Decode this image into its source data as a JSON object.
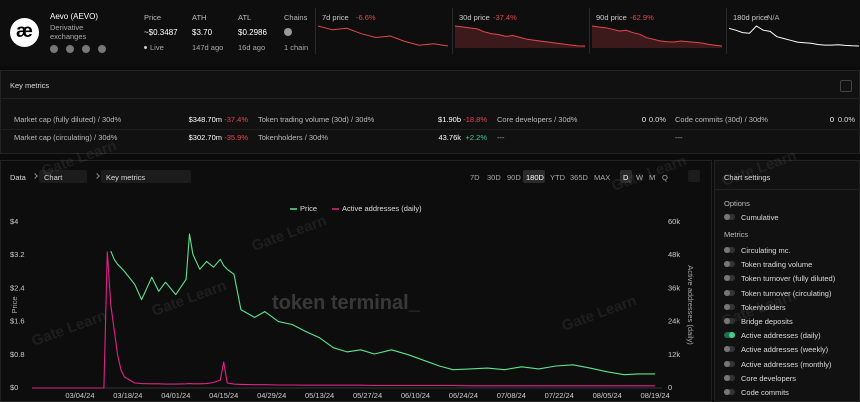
{
  "header": {
    "logo": "æ",
    "name": "Aevo (AEVO)",
    "category": "Derivative exchanges",
    "stats": [
      {
        "label": "Price",
        "value": "~$0.3487",
        "note": "Live"
      },
      {
        "label": "ATH",
        "value": "$3.70",
        "note": "147d ago"
      },
      {
        "label": "ATL",
        "value": "$0.2986",
        "note": "16d ago"
      },
      {
        "label": "Chains",
        "note": "1 chain"
      }
    ]
  },
  "sparklines": [
    {
      "label": "7d price",
      "change": "-6.6%",
      "color": "#e5484d",
      "area": false,
      "values": [
        0.375,
        0.37,
        0.372,
        0.365,
        0.36,
        0.362,
        0.355,
        0.35,
        0.352,
        0.349
      ]
    },
    {
      "label": "30d price",
      "change": "-37.4%",
      "color": "#e5484d",
      "area": true,
      "values": [
        0.56,
        0.55,
        0.54,
        0.53,
        0.5,
        0.48,
        0.47,
        0.45,
        0.46,
        0.44,
        0.42,
        0.41,
        0.4,
        0.39,
        0.38,
        0.37,
        0.36,
        0.35,
        0.349
      ]
    },
    {
      "label": "90d price",
      "change": "-62.9%",
      "color": "#e5484d",
      "area": true,
      "values": [
        0.95,
        0.92,
        0.9,
        0.85,
        0.8,
        0.82,
        0.75,
        0.7,
        0.6,
        0.55,
        0.5,
        0.48,
        0.47,
        0.5,
        0.48,
        0.46,
        0.44,
        0.4,
        0.37,
        0.35
      ]
    },
    {
      "label": "180d price",
      "change": "N/A",
      "color": "#ffffff",
      "area": false,
      "values": [
        3.3,
        3.0,
        2.6,
        2.5,
        3.7,
        3.0,
        2.8,
        1.9,
        1.6,
        1.3,
        1.0,
        0.9,
        0.8,
        0.6,
        0.5,
        0.5,
        0.55,
        0.45,
        0.38,
        0.35
      ]
    }
  ],
  "key_metrics": {
    "title": "Key metrics",
    "rows": [
      [
        {
          "label": "Market cap (fully diluted) / 30d%",
          "value": "$348.70m",
          "change": "-37.4%"
        },
        {
          "label": "Token trading volume (30d) / 30d%",
          "value": "$1.90b",
          "change": "-18.8%"
        },
        {
          "label": "Core developers / 30d%",
          "value": "0",
          "change": "0.0%"
        },
        {
          "label": "Code commits (30d) / 30d%",
          "value": "0",
          "change": "0.0%"
        }
      ],
      [
        {
          "label": "Market cap (circulating) / 30d%",
          "value": "$302.70m",
          "change": "-35.9%"
        },
        {
          "label": "Tokenholders / 30d%",
          "value": "43.76k",
          "change": "+2.2%"
        },
        {
          "label": "---"
        },
        {
          "label": "---"
        }
      ]
    ]
  },
  "chart_panel": {
    "breadcrumb": [
      "Data",
      "Chart",
      "Key metrics"
    ],
    "ranges": [
      "7D",
      "30D",
      "90D",
      "180D",
      "YTD",
      "365D",
      "MAX"
    ],
    "active_range": 3,
    "intervals": [
      "D",
      "W",
      "M",
      "Q"
    ],
    "active_interval": 0
  },
  "watermarks": [
    "token terminal_",
    "Gate Learn"
  ],
  "chart_data": {
    "type": "line",
    "ylabel": "Price",
    "y2label": "Active addresses (daily)",
    "grid": false,
    "x": [
      "02/19/24",
      "03/04/24",
      "03/11/24",
      "03/12/24",
      "03/13/24",
      "03/14/24",
      "03/15/24",
      "03/16/24",
      "03/17/24",
      "03/20/24",
      "03/22/24",
      "03/25/24",
      "03/27/24",
      "03/29/24",
      "04/01/24",
      "04/04/24",
      "04/05/24",
      "04/06/24",
      "04/08/24",
      "04/10/24",
      "04/12/24",
      "04/14/24",
      "04/15/24",
      "04/16/24",
      "04/18/24",
      "04/20/24",
      "04/24/24",
      "04/27/24",
      "05/01/24",
      "05/05/24",
      "05/09/24",
      "05/13/24",
      "05/17/24",
      "05/21/24",
      "05/25/24",
      "05/29/24",
      "06/03/24",
      "06/08/24",
      "06/12/24",
      "06/17/24",
      "06/21/24",
      "06/26/24",
      "07/01/24",
      "07/06/24",
      "07/11/24",
      "07/16/24",
      "07/21/24",
      "07/26/24",
      "07/31/24",
      "08/05/24",
      "08/10/24",
      "08/14/24",
      "08/19/24"
    ],
    "xlim": [
      "02/19/24",
      "08/21/24"
    ],
    "xticks": [
      "03/04/24",
      "03/18/24",
      "04/01/24",
      "04/15/24",
      "04/29/24",
      "05/13/24",
      "05/27/24",
      "06/10/24",
      "06/24/24",
      "07/08/24",
      "07/22/24",
      "08/05/24",
      "08/19/24"
    ],
    "ylim": [
      0,
      4
    ],
    "yticks": [
      {
        "value": 4,
        "label": "$4"
      },
      {
        "value": 3.2,
        "label": "$3.2"
      },
      {
        "value": 2.4,
        "label": "$2.4"
      },
      {
        "value": 1.6,
        "label": "$1.6"
      },
      {
        "value": 0.8,
        "label": "$0.8"
      },
      {
        "value": 0,
        "label": "$0"
      }
    ],
    "y2lim": [
      0,
      60000
    ],
    "y2ticks": [
      {
        "value": 60000,
        "label": "60k"
      },
      {
        "value": 48000,
        "label": "48k"
      },
      {
        "value": 36000,
        "label": "36k"
      },
      {
        "value": 24000,
        "label": "24k"
      },
      {
        "value": 12000,
        "label": "12k"
      },
      0
    ],
    "series": [
      {
        "name": "Price",
        "color": "#5de38e",
        "values": [
          null,
          null,
          null,
          null,
          3.3,
          3.1,
          2.98,
          2.9,
          2.81,
          2.5,
          2.13,
          2.67,
          2.33,
          2.55,
          2.25,
          2.62,
          3.71,
          3.22,
          2.86,
          3.05,
          2.91,
          3.1,
          2.95,
          2.86,
          2.74,
          1.89,
          1.7,
          1.84,
          1.6,
          1.53,
          1.36,
          1.21,
          0.97,
          0.87,
          0.92,
          0.82,
          0.92,
          0.8,
          0.68,
          0.53,
          0.44,
          0.46,
          0.48,
          0.44,
          0.51,
          0.46,
          0.53,
          0.56,
          0.48,
          0.39,
          0.32,
          0.34,
          0.34
        ]
      },
      {
        "name": "Active addresses (daily)",
        "color": "#e0228a",
        "axis": "y2",
        "values": [
          0,
          0,
          0,
          49200,
          30000,
          21000,
          12000,
          6500,
          4000,
          1800,
          1600,
          1500,
          1500,
          1400,
          1400,
          1500,
          1600,
          1500,
          1500,
          1600,
          2000,
          2900,
          9400,
          1800,
          1400,
          1300,
          1200,
          1200,
          1100,
          1100,
          1000,
          1000,
          1000,
          1000,
          1000,
          900,
          900,
          900,
          900,
          900,
          900,
          800,
          800,
          800,
          800,
          800,
          800,
          800,
          800,
          800,
          800,
          800,
          800
        ]
      }
    ]
  },
  "sidebar": {
    "title": "Chart settings",
    "options_title": "Options",
    "options": [
      {
        "label": "Cumulative",
        "on": false
      }
    ],
    "metrics_title": "Metrics",
    "metrics": [
      {
        "label": "Circulating mc.",
        "on": false
      },
      {
        "label": "Token trading volume",
        "on": false
      },
      {
        "label": "Token turnover (fully diluted)",
        "on": false
      },
      {
        "label": "Token turnover (circulating)",
        "on": false
      },
      {
        "label": "Tokenholders",
        "on": false
      },
      {
        "label": "Bridge deposits",
        "on": false
      },
      {
        "label": "Active addresses (daily)",
        "on": true
      },
      {
        "label": "Active addresses (weekly)",
        "on": false
      },
      {
        "label": "Active addresses (monthly)",
        "on": false
      },
      {
        "label": "Core developers",
        "on": false
      },
      {
        "label": "Code commits",
        "on": false
      }
    ]
  }
}
